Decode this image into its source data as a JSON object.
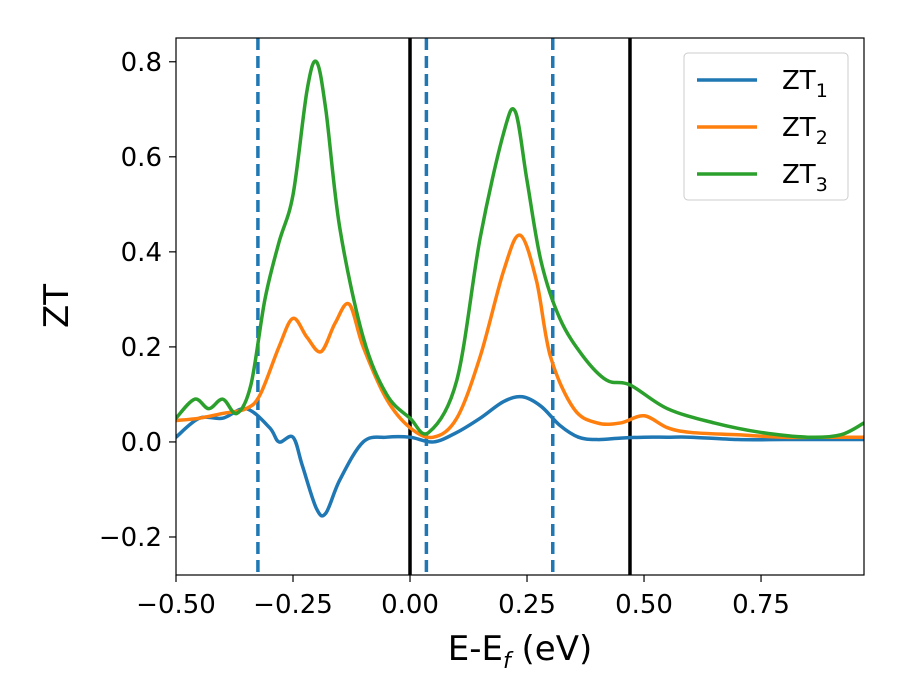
{
  "chart_data": {
    "type": "line",
    "xlabel": "E-E",
    "xlabel_sub": "f",
    "xlabel_suffix": " (eV)",
    "ylabel": "ZT",
    "xlim": [
      -0.5,
      0.97
    ],
    "ylim": [
      -0.28,
      0.85
    ],
    "xticks": [
      -0.5,
      -0.25,
      0.0,
      0.25,
      0.5,
      0.75
    ],
    "xtick_labels": [
      "−0.50",
      "−0.25",
      "0.00",
      "0.25",
      "0.50",
      "0.75"
    ],
    "yticks": [
      -0.2,
      0.0,
      0.2,
      0.4,
      0.6,
      0.8
    ],
    "ytick_labels": [
      "−0.2",
      "0.0",
      "0.2",
      "0.4",
      "0.6",
      "0.8"
    ],
    "grid": false,
    "legend_position": "top-right",
    "vertical_lines": [
      {
        "x": -0.325,
        "style": "dashed",
        "color": "#1f77b4"
      },
      {
        "x": 0.0,
        "style": "solid",
        "color": "#000000"
      },
      {
        "x": 0.035,
        "style": "dashed",
        "color": "#1f77b4"
      },
      {
        "x": 0.305,
        "style": "dashed",
        "color": "#1f77b4"
      },
      {
        "x": 0.47,
        "style": "solid",
        "color": "#000000"
      }
    ],
    "series": [
      {
        "name": "ZT",
        "name_sub": "1",
        "color": "#1f77b4",
        "x": [
          -0.5,
          -0.45,
          -0.4,
          -0.35,
          -0.3,
          -0.28,
          -0.25,
          -0.23,
          -0.2,
          -0.18,
          -0.15,
          -0.1,
          -0.05,
          0.0,
          0.05,
          0.1,
          0.15,
          0.2,
          0.24,
          0.28,
          0.32,
          0.36,
          0.4,
          0.45,
          0.5,
          0.55,
          0.6,
          0.7,
          0.8,
          0.9,
          0.97
        ],
        "y": [
          0.01,
          0.05,
          0.05,
          0.07,
          0.03,
          0.0,
          0.01,
          -0.05,
          -0.14,
          -0.15,
          -0.08,
          0.0,
          0.01,
          0.01,
          0.0,
          0.02,
          0.05,
          0.085,
          0.095,
          0.075,
          0.035,
          0.01,
          0.005,
          0.008,
          0.01,
          0.01,
          0.01,
          0.005,
          0.005,
          0.005,
          0.005
        ]
      },
      {
        "name": "ZT",
        "name_sub": "2",
        "color": "#ff7f0e",
        "x": [
          -0.5,
          -0.45,
          -0.4,
          -0.35,
          -0.32,
          -0.28,
          -0.25,
          -0.22,
          -0.19,
          -0.16,
          -0.13,
          -0.1,
          -0.05,
          0.0,
          0.05,
          0.1,
          0.15,
          0.2,
          0.235,
          0.27,
          0.3,
          0.35,
          0.4,
          0.45,
          0.5,
          0.55,
          0.6,
          0.7,
          0.8,
          0.9,
          0.97
        ],
        "y": [
          0.045,
          0.05,
          0.06,
          0.07,
          0.1,
          0.2,
          0.26,
          0.22,
          0.19,
          0.25,
          0.29,
          0.2,
          0.09,
          0.03,
          0.01,
          0.05,
          0.18,
          0.36,
          0.435,
          0.34,
          0.18,
          0.07,
          0.04,
          0.04,
          0.055,
          0.03,
          0.02,
          0.015,
          0.01,
          0.01,
          0.01
        ]
      },
      {
        "name": "ZT",
        "name_sub": "3",
        "color": "#2ca02c",
        "x": [
          -0.5,
          -0.46,
          -0.43,
          -0.4,
          -0.37,
          -0.34,
          -0.31,
          -0.28,
          -0.25,
          -0.22,
          -0.2,
          -0.18,
          -0.15,
          -0.1,
          -0.05,
          0.0,
          0.04,
          0.1,
          0.15,
          0.2,
          0.225,
          0.25,
          0.28,
          0.32,
          0.37,
          0.42,
          0.47,
          0.55,
          0.65,
          0.75,
          0.85,
          0.92,
          0.97
        ],
        "y": [
          0.05,
          0.09,
          0.07,
          0.09,
          0.06,
          0.12,
          0.3,
          0.42,
          0.52,
          0.74,
          0.8,
          0.7,
          0.45,
          0.22,
          0.1,
          0.05,
          0.02,
          0.13,
          0.43,
          0.65,
          0.695,
          0.55,
          0.38,
          0.26,
          0.18,
          0.13,
          0.12,
          0.07,
          0.04,
          0.02,
          0.01,
          0.015,
          0.04
        ]
      }
    ]
  }
}
